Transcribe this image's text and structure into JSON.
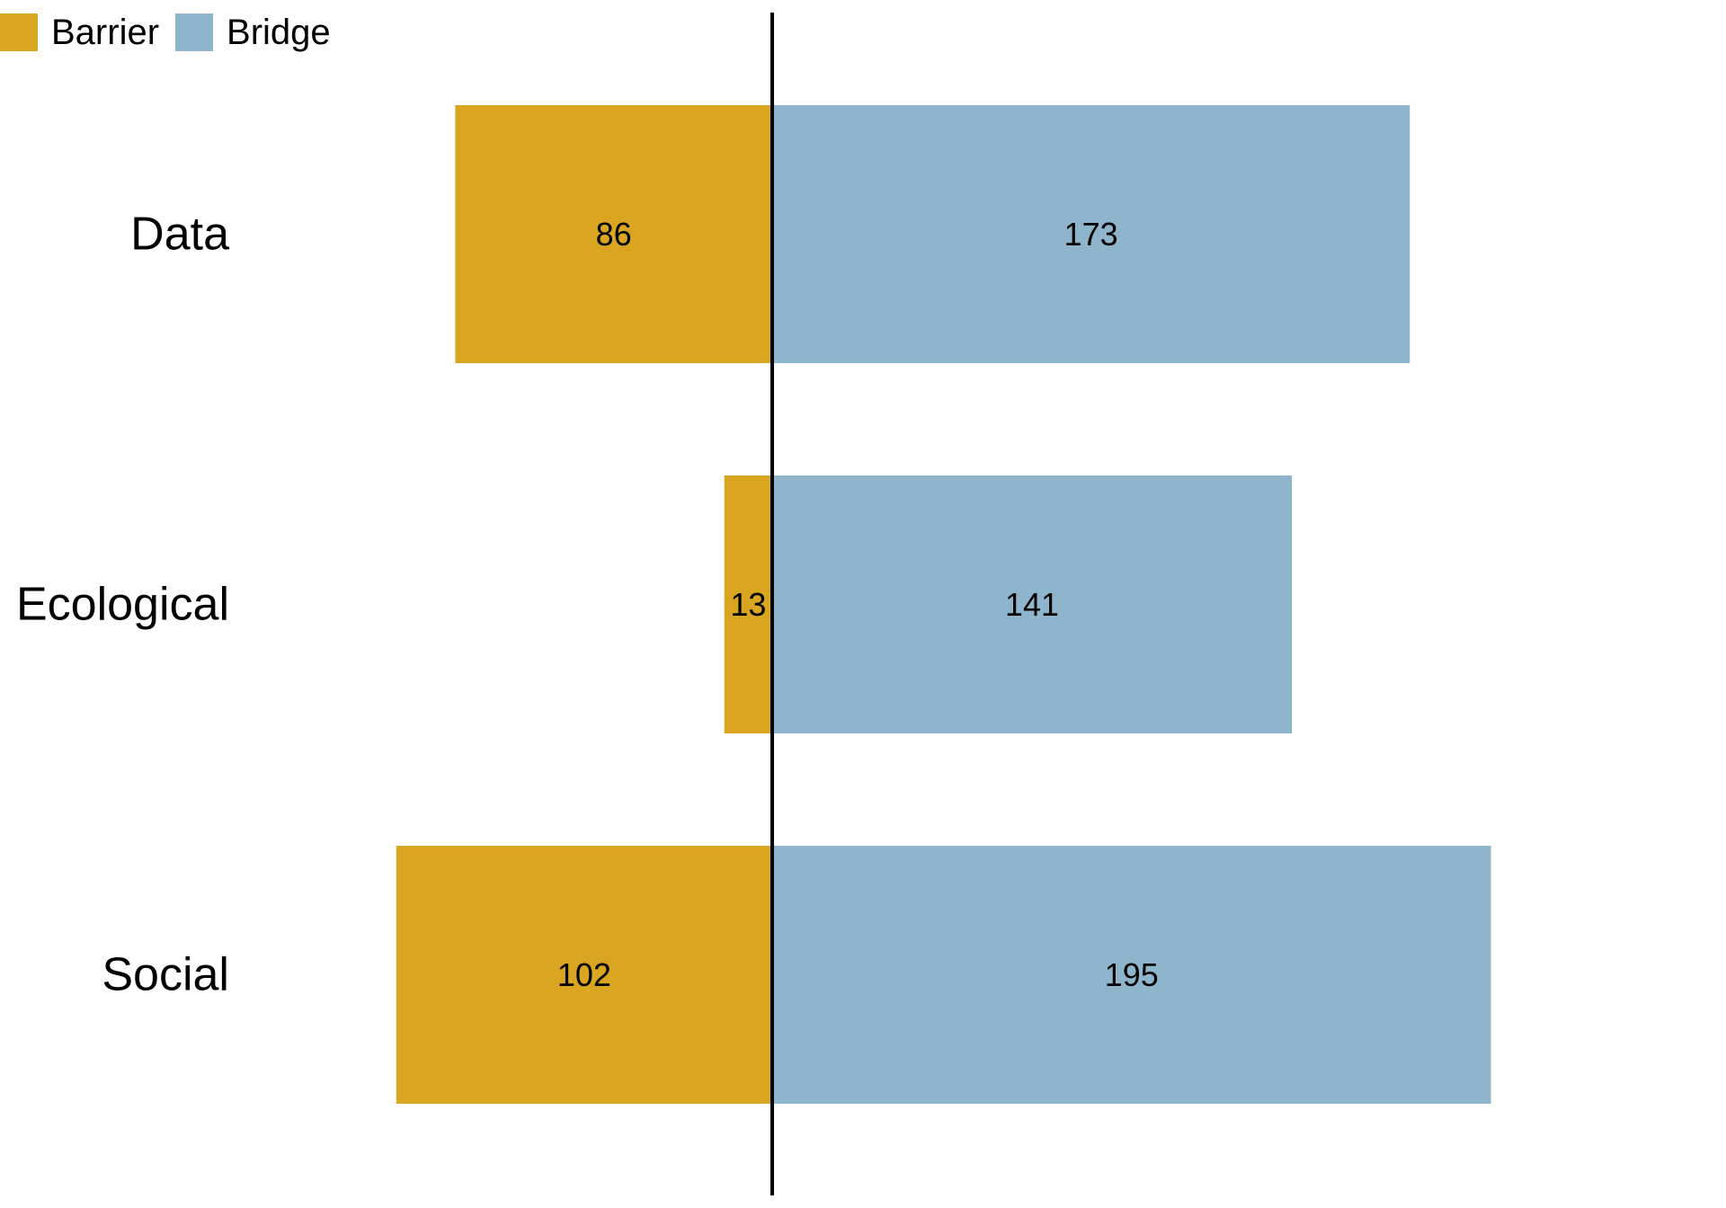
{
  "chart_data": {
    "type": "bar",
    "orientation": "horizontal",
    "stacking": "diverging",
    "categories": [
      "Data",
      "Ecological",
      "Social"
    ],
    "series": [
      {
        "name": "Barrier",
        "values": [
          86,
          13,
          102
        ],
        "color": "#DAA520",
        "direction": "left"
      },
      {
        "name": "Bridge",
        "values": [
          173,
          141,
          195
        ],
        "color": "#8FB5CC",
        "direction": "right"
      }
    ],
    "data_labels": true,
    "legend_position": "top-left",
    "grid": false,
    "center_line": true
  },
  "legend": {
    "barrier_label": "Barrier",
    "bridge_label": "Bridge",
    "barrier_color": "#DAA520",
    "bridge_color": "#8FB5CC"
  }
}
